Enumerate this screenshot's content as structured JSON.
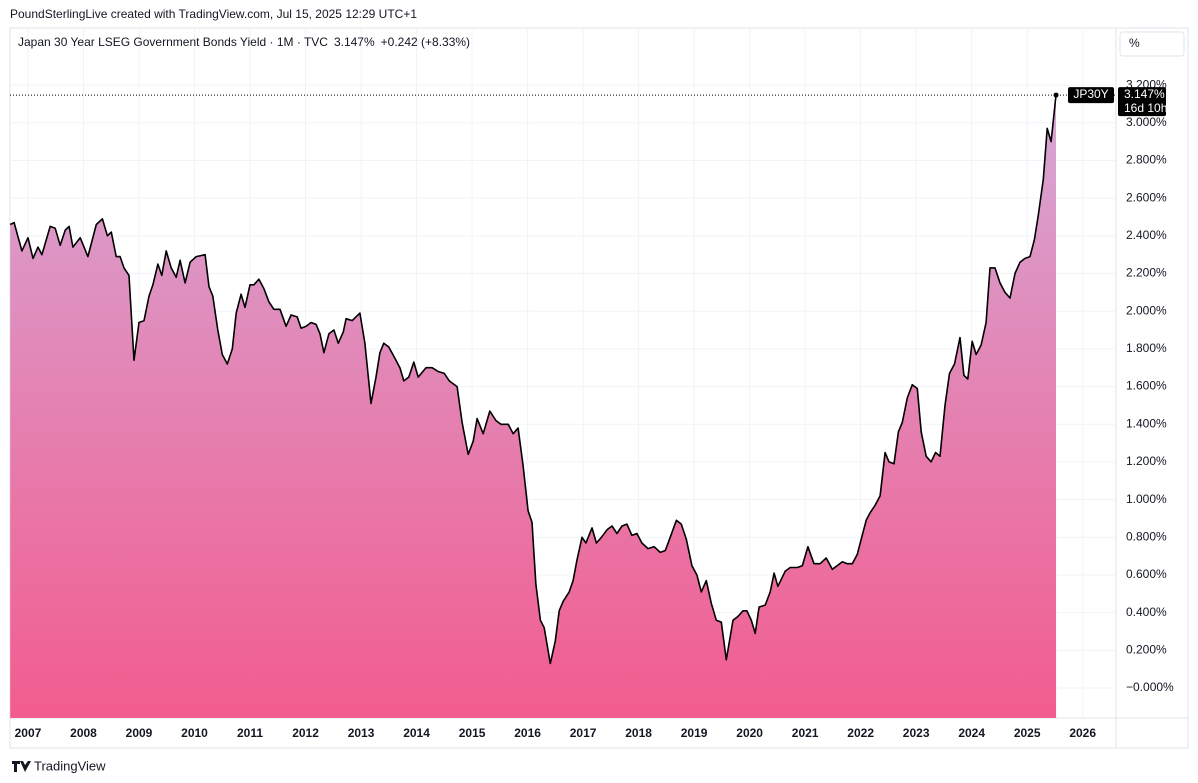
{
  "header": "PoundSterlingLive created with TradingView.com, Jul 15, 2025 12:29 UTC+1",
  "footer": "TradingView",
  "chart_data": {
    "type": "area",
    "title": "Japan 30 Year LSEG Government Bonds Yield · 1M · TVC",
    "last_label": "3.147%",
    "change": "+0.242 (+8.33%)",
    "symbol": "JP30Y",
    "countdown": "16d 10h",
    "unit": "%",
    "line_color": "#000000",
    "fill_top": "#d3b0de",
    "fill_bottom": "#f25c8e",
    "grid": true,
    "xlim": [
      2006.676,
      2026.6
    ],
    "xticks": [
      2007,
      2008,
      2009,
      2010,
      2011,
      2012,
      2013,
      2014,
      2015,
      2016,
      2017,
      2018,
      2019,
      2020,
      2021,
      2022,
      2023,
      2024,
      2025,
      2026
    ],
    "ylim": [
      -0.159,
      3.503
    ],
    "yticks": [
      {
        "value": 3.2,
        "label": "3.200%"
      },
      {
        "value": 3.0,
        "label": "3.000%"
      },
      {
        "value": 2.8,
        "label": "2.800%"
      },
      {
        "value": 2.6,
        "label": "2.600%"
      },
      {
        "value": 2.4,
        "label": "2.400%"
      },
      {
        "value": 2.2,
        "label": "2.200%"
      },
      {
        "value": 2.0,
        "label": "2.000%"
      },
      {
        "value": 1.8,
        "label": "1.800%"
      },
      {
        "value": 1.6,
        "label": "1.600%"
      },
      {
        "value": 1.4,
        "label": "1.400%"
      },
      {
        "value": 1.2,
        "label": "1.200%"
      },
      {
        "value": 1.0,
        "label": "1.000%"
      },
      {
        "value": 0.8,
        "label": "0.800%"
      },
      {
        "value": 0.6,
        "label": "0.600%"
      },
      {
        "value": 0.4,
        "label": "0.400%"
      },
      {
        "value": 0.2,
        "label": "0.200%"
      },
      {
        "value": 0,
        "label": "−0.000%"
      }
    ],
    "x": [
      2006.68,
      2006.75,
      2006.89,
      2007.0,
      2007.09,
      2007.18,
      2007.25,
      2007.4,
      2007.49,
      2007.58,
      2007.67,
      2007.74,
      2007.81,
      2007.94,
      2008.08,
      2008.23,
      2008.34,
      2008.43,
      2008.5,
      2008.59,
      2008.66,
      2008.73,
      2008.82,
      2008.91,
      2009.0,
      2009.09,
      2009.18,
      2009.25,
      2009.34,
      2009.41,
      2009.49,
      2009.58,
      2009.67,
      2009.74,
      2009.83,
      2009.92,
      2010.03,
      2010.19,
      2010.26,
      2010.33,
      2010.42,
      2010.5,
      2010.59,
      2010.68,
      2010.75,
      2010.84,
      2010.91,
      2011.0,
      2011.07,
      2011.16,
      2011.25,
      2011.34,
      2011.43,
      2011.54,
      2011.65,
      2011.74,
      2011.85,
      2011.92,
      2012.01,
      2012.1,
      2012.19,
      2012.26,
      2012.33,
      2012.42,
      2012.51,
      2012.59,
      2012.68,
      2012.73,
      2012.84,
      2012.98,
      2013.07,
      2013.18,
      2013.27,
      2013.34,
      2013.41,
      2013.5,
      2013.61,
      2013.7,
      2013.77,
      2013.86,
      2013.95,
      2014.03,
      2014.17,
      2014.28,
      2014.39,
      2014.5,
      2014.59,
      2014.73,
      2014.82,
      2014.93,
      2015.02,
      2015.09,
      2015.2,
      2015.32,
      2015.43,
      2015.52,
      2015.65,
      2015.74,
      2015.83,
      2015.92,
      2016.01,
      2016.08,
      2016.15,
      2016.23,
      2016.3,
      2016.41,
      2016.5,
      2016.57,
      2016.64,
      2016.75,
      2016.82,
      2016.89,
      2016.98,
      2017.05,
      2017.16,
      2017.24,
      2017.33,
      2017.43,
      2017.52,
      2017.61,
      2017.7,
      2017.79,
      2017.88,
      2017.97,
      2018.06,
      2018.17,
      2018.28,
      2018.39,
      2018.48,
      2018.57,
      2018.68,
      2018.77,
      2018.86,
      2018.96,
      2019.05,
      2019.13,
      2019.22,
      2019.31,
      2019.4,
      2019.49,
      2019.58,
      2019.7,
      2019.79,
      2019.88,
      2019.95,
      2020.03,
      2020.1,
      2020.17,
      2020.28,
      2020.37,
      2020.44,
      2020.51,
      2020.64,
      2020.73,
      2020.86,
      2020.95,
      2021.05,
      2021.16,
      2021.27,
      2021.38,
      2021.49,
      2021.58,
      2021.67,
      2021.76,
      2021.85,
      2021.94,
      2022.01,
      2022.1,
      2022.17,
      2022.26,
      2022.35,
      2022.44,
      2022.51,
      2022.6,
      2022.68,
      2022.75,
      2022.84,
      2022.93,
      2023.02,
      2023.09,
      2023.18,
      2023.27,
      2023.35,
      2023.43,
      2023.52,
      2023.6,
      2023.69,
      2023.79,
      2023.86,
      2023.93,
      2024.01,
      2024.08,
      2024.17,
      2024.26,
      2024.33,
      2024.42,
      2024.51,
      2024.6,
      2024.69,
      2024.78,
      2024.87,
      2024.96,
      2025.05,
      2025.13,
      2025.2,
      2025.29,
      2025.36,
      2025.43,
      2025.52
    ],
    "values": [
      2.46,
      2.47,
      2.32,
      2.39,
      2.28,
      2.34,
      2.3,
      2.45,
      2.44,
      2.35,
      2.43,
      2.45,
      2.34,
      2.39,
      2.29,
      2.46,
      2.49,
      2.4,
      2.42,
      2.29,
      2.29,
      2.23,
      2.19,
      1.74,
      1.94,
      1.95,
      2.08,
      2.14,
      2.25,
      2.19,
      2.32,
      2.23,
      2.18,
      2.27,
      2.15,
      2.26,
      2.29,
      2.3,
      2.13,
      2.08,
      1.9,
      1.77,
      1.72,
      1.8,
      1.99,
      2.09,
      2.02,
      2.14,
      2.14,
      2.17,
      2.12,
      2.05,
      2.01,
      2.01,
      1.92,
      1.98,
      1.97,
      1.91,
      1.92,
      1.94,
      1.93,
      1.88,
      1.78,
      1.88,
      1.9,
      1.83,
      1.89,
      1.96,
      1.95,
      1.99,
      1.83,
      1.51,
      1.65,
      1.78,
      1.83,
      1.81,
      1.75,
      1.7,
      1.63,
      1.65,
      1.73,
      1.65,
      1.7,
      1.7,
      1.68,
      1.67,
      1.63,
      1.6,
      1.41,
      1.24,
      1.31,
      1.43,
      1.35,
      1.47,
      1.42,
      1.4,
      1.4,
      1.35,
      1.38,
      1.18,
      0.94,
      0.88,
      0.55,
      0.36,
      0.32,
      0.13,
      0.25,
      0.41,
      0.46,
      0.51,
      0.57,
      0.68,
      0.8,
      0.77,
      0.85,
      0.77,
      0.8,
      0.84,
      0.86,
      0.82,
      0.86,
      0.87,
      0.81,
      0.82,
      0.77,
      0.74,
      0.75,
      0.72,
      0.73,
      0.8,
      0.89,
      0.87,
      0.79,
      0.65,
      0.6,
      0.51,
      0.57,
      0.45,
      0.36,
      0.35,
      0.15,
      0.36,
      0.38,
      0.41,
      0.41,
      0.36,
      0.29,
      0.43,
      0.44,
      0.51,
      0.61,
      0.54,
      0.62,
      0.64,
      0.64,
      0.65,
      0.75,
      0.66,
      0.66,
      0.69,
      0.63,
      0.65,
      0.67,
      0.66,
      0.66,
      0.71,
      0.79,
      0.89,
      0.93,
      0.97,
      1.02,
      1.25,
      1.2,
      1.19,
      1.36,
      1.41,
      1.54,
      1.61,
      1.59,
      1.36,
      1.23,
      1.2,
      1.25,
      1.23,
      1.5,
      1.67,
      1.72,
      1.86,
      1.66,
      1.64,
      1.84,
      1.77,
      1.82,
      1.94,
      2.23,
      2.23,
      2.15,
      2.1,
      2.07,
      2.2,
      2.26,
      2.28,
      2.29,
      2.38,
      2.51,
      2.7,
      2.97,
      2.9,
      3.147
    ]
  }
}
